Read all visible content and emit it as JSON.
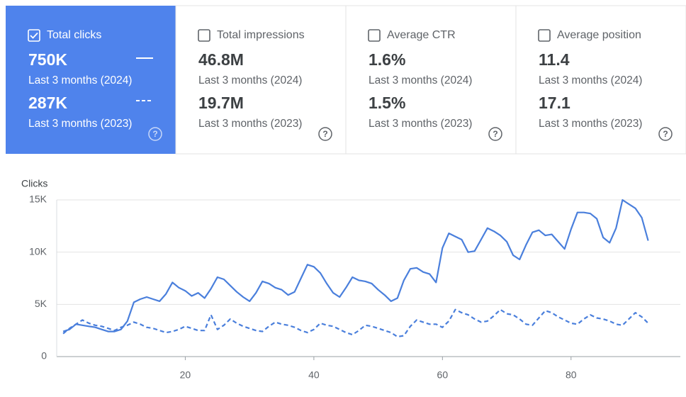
{
  "cards": [
    {
      "label": "Total clicks",
      "checked": true,
      "rows": [
        {
          "value": "750K"
        },
        {
          "value": "287K"
        }
      ]
    },
    {
      "label": "Total impressions",
      "checked": false,
      "rows": [
        {
          "value": "46.8M",
          "period": "Last 3 months (2024)"
        },
        {
          "value": "19.7M",
          "period": "Last 3 months (2023)"
        }
      ]
    },
    {
      "label": "Average CTR",
      "checked": false,
      "rows": [
        {
          "value": "1.6%",
          "period": "Last 3 months (2024)"
        },
        {
          "value": "1.5%",
          "period": "Last 3 months (2023)"
        }
      ]
    },
    {
      "label": "Average position",
      "checked": false,
      "rows": [
        {
          "value": "11.4",
          "period": "Last 3 months (2024)"
        },
        {
          "value": "17.1",
          "period": "Last 3 months (2023)"
        }
      ]
    }
  ],
  "chart_data": {
    "type": "line",
    "y_label": "Clicks",
    "x": [
      1,
      2,
      3,
      4,
      5,
      6,
      7,
      8,
      9,
      10,
      11,
      12,
      13,
      14,
      15,
      16,
      17,
      18,
      19,
      20,
      21,
      22,
      23,
      24,
      25,
      26,
      27,
      28,
      29,
      30,
      31,
      32,
      33,
      34,
      35,
      36,
      37,
      38,
      39,
      40,
      41,
      42,
      43,
      44,
      45,
      46,
      47,
      48,
      49,
      50,
      51,
      52,
      53,
      54,
      55,
      56,
      57,
      58,
      59,
      60,
      61,
      62,
      63,
      64,
      65,
      66,
      67,
      68,
      69,
      70,
      71,
      72,
      73,
      74,
      75,
      76,
      77,
      78,
      79,
      80,
      81,
      82,
      83,
      84,
      85,
      86,
      87,
      88,
      89,
      90,
      91,
      92
    ],
    "series": [
      {
        "name": "Last 3 months (2024)",
        "color": "#4a7fdc",
        "dashed": false,
        "values": [
          2400,
          2600,
          3100,
          3000,
          2900,
          2800,
          2600,
          2400,
          2400,
          2600,
          3400,
          5200,
          5500,
          5700,
          5500,
          5300,
          6000,
          7100,
          6600,
          6300,
          5800,
          6100,
          5600,
          6500,
          7600,
          7400,
          6800,
          6200,
          5700,
          5300,
          6100,
          7200,
          7000,
          6600,
          6400,
          5900,
          6200,
          7500,
          8800,
          8600,
          8000,
          7000,
          6100,
          5700,
          6600,
          7600,
          7300,
          7200,
          7000,
          6400,
          5900,
          5300,
          5600,
          7300,
          8400,
          8500,
          8100,
          7900,
          7100,
          10400,
          11800,
          11500,
          11200,
          10000,
          10100,
          11200,
          12300,
          12000,
          11600,
          11000,
          9700,
          9300,
          10700,
          11900,
          12100,
          11600,
          11700,
          11000,
          10300,
          12200,
          13800,
          13800,
          13700,
          13200,
          11400,
          10900,
          12300,
          15000,
          14600,
          14200,
          13300,
          11100
        ]
      },
      {
        "name": "Last 3 months (2023)",
        "color": "#4a7fdc",
        "dashed": true,
        "values": [
          2200,
          2700,
          3100,
          3500,
          3200,
          3000,
          2900,
          2700,
          2500,
          2800,
          3000,
          3300,
          3100,
          2800,
          2700,
          2500,
          2300,
          2400,
          2600,
          2900,
          2700,
          2500,
          2500,
          4000,
          2600,
          3000,
          3600,
          3200,
          2900,
          2700,
          2500,
          2400,
          2900,
          3300,
          3100,
          3000,
          2800,
          2500,
          2300,
          2600,
          3200,
          3000,
          2900,
          2600,
          2300,
          2100,
          2500,
          3000,
          2900,
          2700,
          2500,
          2300,
          1900,
          2000,
          2900,
          3500,
          3300,
          3100,
          3100,
          2800,
          3400,
          4500,
          4200,
          4000,
          3600,
          3300,
          3400,
          3900,
          4500,
          4100,
          4000,
          3600,
          3100,
          3000,
          3700,
          4400,
          4200,
          3800,
          3500,
          3200,
          3100,
          3600,
          4000,
          3700,
          3600,
          3400,
          3100,
          3000,
          3600,
          4200,
          3800,
          3200
        ]
      }
    ],
    "xlim": [
      0,
      97
    ],
    "xticks": [
      20,
      40,
      60,
      80
    ],
    "ylim": [
      0,
      15000
    ],
    "yticks": [
      0,
      {
        "value": 5000,
        "label": "5K"
      },
      {
        "value": 10000,
        "label": "10K"
      },
      {
        "value": 15000,
        "label": "15K"
      }
    ],
    "grid": true
  }
}
